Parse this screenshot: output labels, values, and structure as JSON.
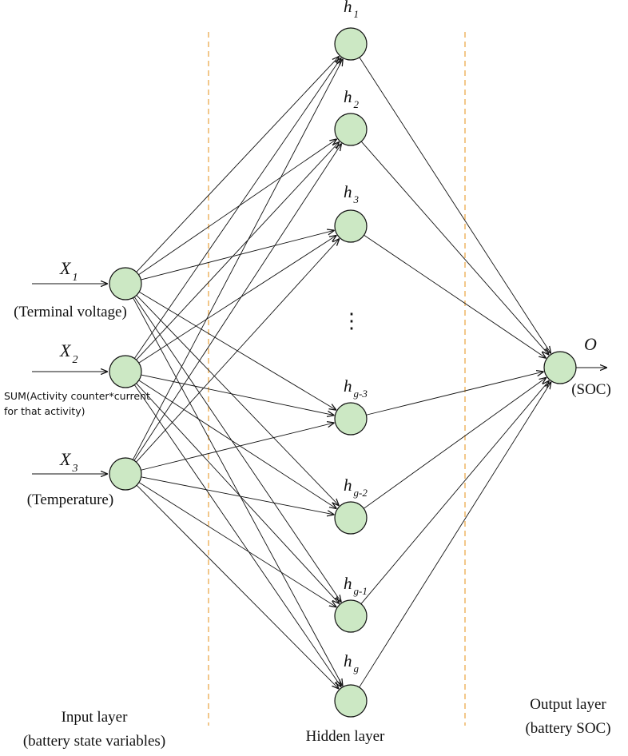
{
  "colors": {
    "node_fill": "#cce8c4",
    "divider": "#e8a23c",
    "line": "#111111"
  },
  "inputs": [
    {
      "var": "X",
      "sub": "1",
      "caption": [
        "(Terminal voltage)"
      ],
      "caption_style": "serif"
    },
    {
      "var": "X",
      "sub": "2",
      "caption": [
        "SUM(Activity counter*current",
        "for that activity)"
      ],
      "caption_style": "sans"
    },
    {
      "var": "X",
      "sub": "3",
      "caption": [
        "(Temperature)"
      ],
      "caption_style": "serif"
    }
  ],
  "hidden": [
    {
      "var": "h",
      "sub": "1"
    },
    {
      "var": "h",
      "sub": "2"
    },
    {
      "var": "h",
      "sub": "3"
    },
    {
      "var": "h",
      "sub": "g-3"
    },
    {
      "var": "h",
      "sub": "g-2"
    },
    {
      "var": "h",
      "sub": "g-1"
    },
    {
      "var": "h",
      "sub": "g"
    }
  ],
  "ellipsis": "⋮",
  "output": {
    "var": "O",
    "caption": "(SOC)"
  },
  "layer_labels": {
    "input": [
      "Input layer",
      "(battery state variables)"
    ],
    "hidden": [
      "Hidden layer"
    ],
    "output": [
      "Output layer",
      "(battery SOC)"
    ]
  }
}
